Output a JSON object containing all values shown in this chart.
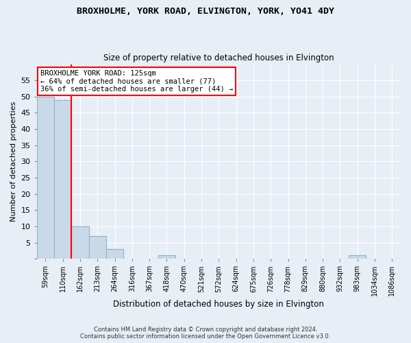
{
  "title": "BROXHOLME, YORK ROAD, ELVINGTON, YORK, YO41 4DY",
  "subtitle": "Size of property relative to detached houses in Elvington",
  "xlabel": "Distribution of detached houses by size in Elvington",
  "ylabel": "Number of detached properties",
  "bin_labels": [
    "59sqm",
    "110sqm",
    "162sqm",
    "213sqm",
    "264sqm",
    "316sqm",
    "367sqm",
    "418sqm",
    "470sqm",
    "521sqm",
    "572sqm",
    "624sqm",
    "675sqm",
    "726sqm",
    "778sqm",
    "829sqm",
    "880sqm",
    "932sqm",
    "983sqm",
    "1034sqm",
    "1086sqm"
  ],
  "bar_heights": [
    50,
    49,
    10,
    7,
    3,
    0,
    0,
    1,
    0,
    0,
    0,
    0,
    0,
    0,
    0,
    0,
    0,
    0,
    1,
    0,
    0
  ],
  "bar_color": "#c9d9e8",
  "bar_edge_color": "#8ab4cc",
  "ylim": [
    0,
    60
  ],
  "yticks": [
    0,
    5,
    10,
    15,
    20,
    25,
    30,
    35,
    40,
    45,
    50,
    55
  ],
  "red_line_x": 1.5,
  "annotation_title": "BROXHOLME YORK ROAD: 125sqm",
  "annotation_line1": "← 64% of detached houses are smaller (77)",
  "annotation_line2": "36% of semi-detached houses are larger (44) →",
  "footer1": "Contains HM Land Registry data © Crown copyright and database right 2024.",
  "footer2": "Contains public sector information licensed under the Open Government Licence v3.0.",
  "background_color": "#e8eef5",
  "plot_bg_color": "#e8eef5",
  "grid_color": "#ffffff"
}
